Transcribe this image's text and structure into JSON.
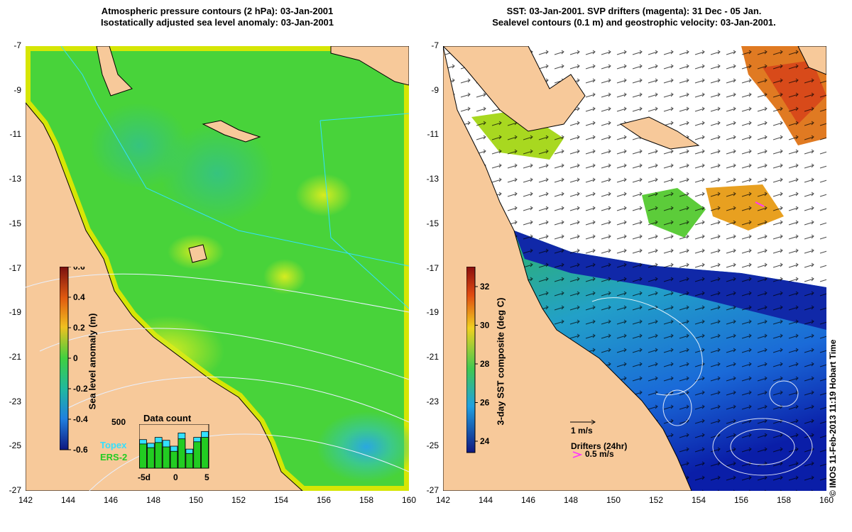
{
  "left_panel": {
    "title_line1": "Atmospheric pressure contours (2 hPa): 03-Jan-2001",
    "title_line2": "Isostatically adjusted sea level anomaly: 03-Jan-2001",
    "colorbar": {
      "label": "Sea level anomaly (m)",
      "ticks": [
        "0.6",
        "0.4",
        "0.2",
        "0",
        "-0.2",
        "-0.4",
        "-0.6"
      ]
    },
    "data_count": {
      "title": "Data count",
      "y_tick": "500",
      "x_ticks": [
        "-5d",
        "0",
        "5"
      ],
      "legend_topex": "Topex",
      "legend_ers2": "ERS-2",
      "topex_color": "#33e0ff",
      "ers2_color": "#22cc22",
      "bars_topex": [
        390,
        340,
        420,
        380,
        300,
        480,
        260,
        420,
        500
      ],
      "bars_ers2": [
        330,
        280,
        350,
        290,
        230,
        400,
        200,
        360,
        420
      ]
    }
  },
  "right_panel": {
    "title_line1": "SST: 03-Jan-2001. SVP drifters (magenta): 31 Dec - 05 Jan.",
    "title_line2": "Sealevel contours (0.1 m) and geostrophic velocity: 03-Jan-2001.",
    "colorbar": {
      "label": "3-day SST composite (deg C)",
      "ticks": [
        "32",
        "30",
        "28",
        "26",
        "24"
      ]
    },
    "velocity_key": "1 m/s",
    "drifters_label": "Drifters (24hr)",
    "drifters_key": "0.5 m/s",
    "drifter_color": "#ff33ff"
  },
  "axes": {
    "x_ticks": [
      "142",
      "144",
      "146",
      "148",
      "150",
      "152",
      "154",
      "156",
      "158",
      "160"
    ],
    "y_ticks": [
      "-7",
      "-9",
      "-11",
      "-13",
      "-15",
      "-17",
      "-19",
      "-21",
      "-23",
      "-25",
      "-27"
    ]
  },
  "colors": {
    "land": "#f7c99a",
    "coast": "#000000"
  },
  "copyright": "© IMOS 11-Feb-2013 11:19 Hobart Time"
}
